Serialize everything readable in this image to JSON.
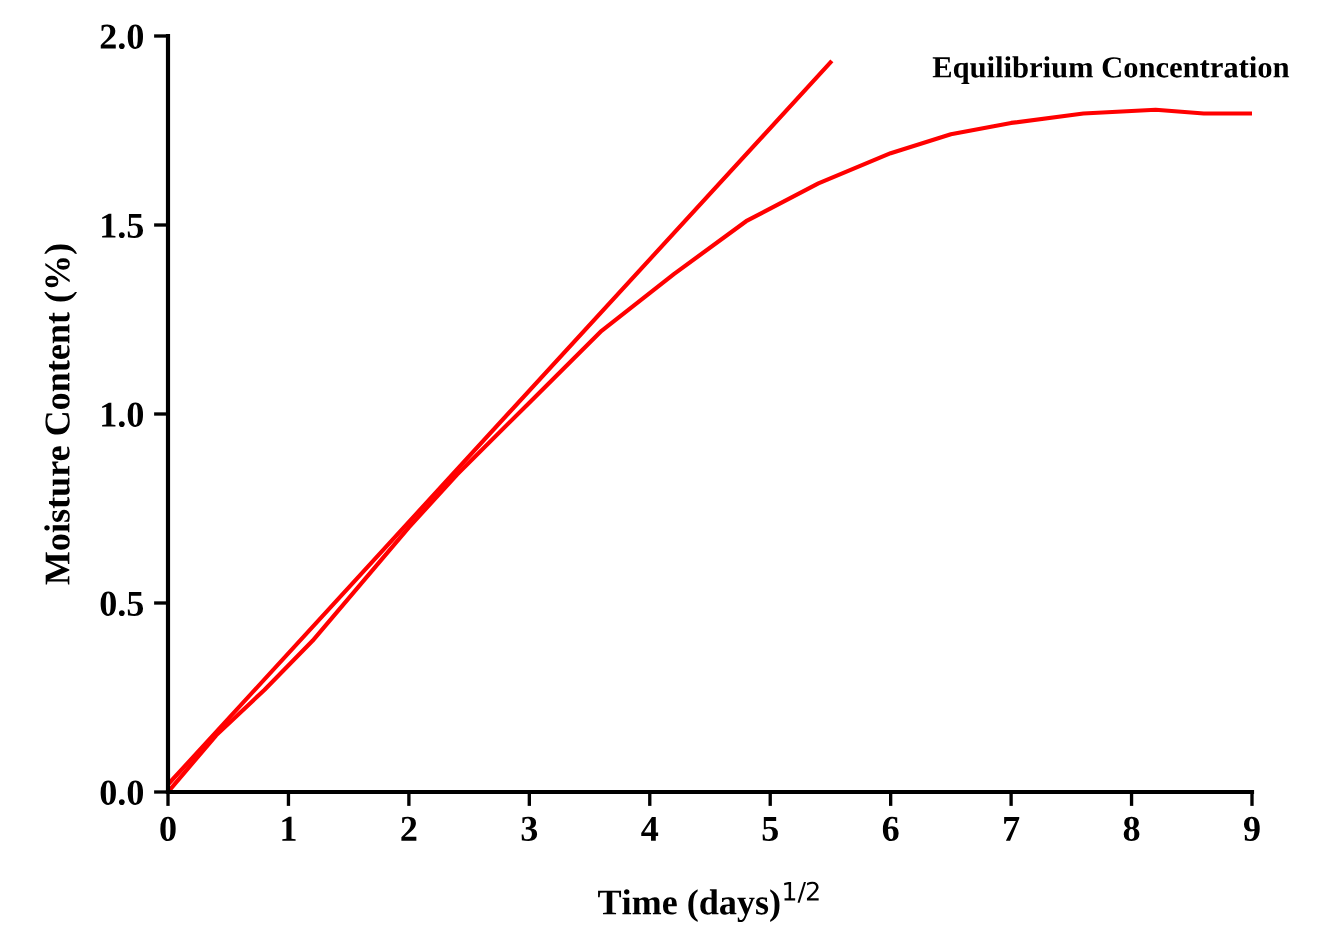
{
  "chart_data": {
    "type": "line",
    "xlabel": "Time (days)$^{1/2}$",
    "ylabel": "Moisture Content (%)",
    "xlim": [
      0,
      9
    ],
    "ylim": [
      0,
      2.0
    ],
    "xticks": [
      0,
      1,
      2,
      3,
      4,
      5,
      6,
      7,
      8,
      9
    ],
    "yticks": [
      {
        "value": 0,
        "label": "0.0"
      },
      0.5,
      {
        "value": 1,
        "label": "1.0"
      },
      1.5,
      {
        "value": 2,
        "label": "2.0"
      }
    ],
    "grid": false,
    "legend": false,
    "marker": "none",
    "line_style": "solid",
    "annotations": [
      "Equilibrium Concentration"
    ],
    "series": [
      {
        "color": "#ff0000",
        "x": [
          0,
          0.4,
          0.8,
          1.2,
          1.6,
          2.0,
          2.4,
          3.0,
          3.6,
          4.2,
          4.8,
          5.4,
          6.0,
          6.5,
          7.0,
          7.6,
          8.2,
          8.6,
          9.0
        ],
        "values": [
          0,
          0.15,
          0.27,
          0.4,
          0.55,
          0.7,
          0.84,
          1.03,
          1.22,
          1.37,
          1.51,
          1.61,
          1.69,
          1.74,
          1.77,
          1.795,
          1.805,
          1.795,
          1.795
        ]
      },
      {
        "color": "#ff0000",
        "x": [
          0,
          5.5
        ],
        "values": [
          0.02,
          1.93
        ]
      }
    ]
  }
}
